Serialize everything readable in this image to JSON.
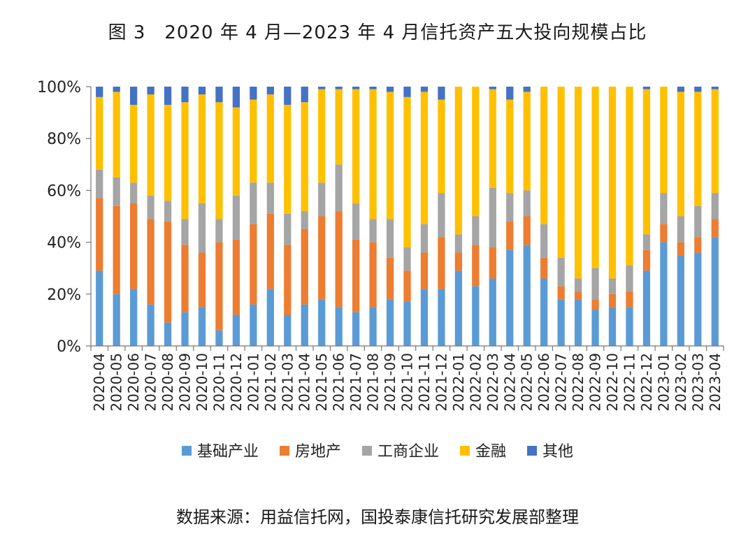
{
  "title": "图 3　2020 年 4 月—2023 年 4 月信托资产五大投向规模占比",
  "source": "数据来源：用益信托网，国投泰康信托研究发展部整理",
  "chart_data": {
    "type": "bar",
    "stacked": true,
    "percent": true,
    "ylim": [
      0,
      100
    ],
    "yticks": [
      "0%",
      "20%",
      "40%",
      "60%",
      "80%",
      "100%"
    ],
    "legend_position": "bottom",
    "grid": false,
    "categories": [
      "2020-04",
      "2020-05",
      "2020-06",
      "2020-07",
      "2020-08",
      "2020-09",
      "2020-10",
      "2020-11",
      "2020-12",
      "2021-01",
      "2021-02",
      "2021-03",
      "2021-04",
      "2021-05",
      "2021-06",
      "2021-07",
      "2021-08",
      "2021-09",
      "2021-10",
      "2021-11",
      "2021-12",
      "2022-01",
      "2022-02",
      "2022-03",
      "2022-04",
      "2022-05",
      "2022-06",
      "2022-07",
      "2022-08",
      "2022-09",
      "2022-10",
      "2022-11",
      "2022-12",
      "2023-01",
      "2023-02",
      "2023-03",
      "2023-04"
    ],
    "series": [
      {
        "name": "基础产业",
        "color": "#5B9BD5",
        "values": [
          29,
          20,
          22,
          16,
          9,
          13,
          15,
          6,
          12,
          16,
          22,
          12,
          16,
          18,
          15,
          13,
          15,
          18,
          17,
          22,
          22,
          29,
          23,
          26,
          37,
          39,
          26,
          18,
          18,
          14,
          15,
          15,
          29,
          40,
          35,
          36,
          42
        ]
      },
      {
        "name": "房地产",
        "color": "#ED7D31",
        "values": [
          28,
          34,
          33,
          33,
          39,
          26,
          21,
          34,
          29,
          31,
          29,
          27,
          29,
          32,
          37,
          28,
          25,
          16,
          12,
          14,
          20,
          7,
          16,
          12,
          11,
          11,
          8,
          5,
          3,
          4,
          5,
          6,
          8,
          7,
          5,
          6,
          7
        ]
      },
      {
        "name": "工商企业",
        "color": "#A5A5A5",
        "values": [
          11,
          11,
          8,
          9,
          8,
          10,
          19,
          9,
          17,
          16,
          12,
          12,
          7,
          13,
          18,
          14,
          9,
          15,
          9,
          11,
          17,
          7,
          11,
          23,
          11,
          10,
          13,
          11,
          5,
          12,
          6,
          10,
          6,
          12,
          10,
          12,
          10
        ]
      },
      {
        "name": "金融",
        "color": "#FFC000",
        "values": [
          28,
          33,
          30,
          39,
          37,
          45,
          42,
          45,
          34,
          32,
          34,
          42,
          42,
          36,
          29,
          44,
          50,
          49,
          58,
          51,
          36,
          57,
          50,
          38,
          36,
          38,
          53,
          66,
          74,
          70,
          74,
          69,
          56,
          41,
          48,
          44,
          40
        ]
      },
      {
        "name": "其他",
        "color": "#4472C4",
        "values": [
          4,
          2,
          7,
          3,
          7,
          6,
          3,
          6,
          8,
          5,
          3,
          7,
          6,
          1,
          1,
          1,
          1,
          2,
          4,
          2,
          5,
          0,
          0,
          1,
          5,
          2,
          0,
          0,
          0,
          0,
          0,
          0,
          1,
          0,
          2,
          2,
          1
        ]
      }
    ]
  }
}
